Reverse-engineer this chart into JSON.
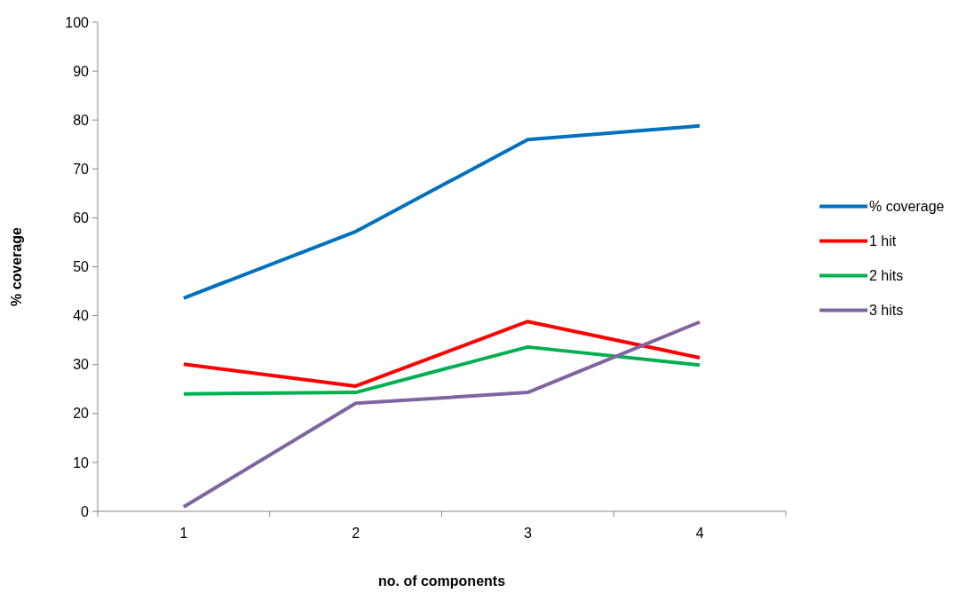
{
  "chart_data": {
    "type": "line",
    "xlabel": "no. of components",
    "ylabel": "% coverage",
    "categories": [
      "1",
      "2",
      "3",
      "4"
    ],
    "ylim": [
      0,
      100
    ],
    "yticks": [
      0,
      10,
      20,
      30,
      40,
      50,
      60,
      70,
      80,
      90,
      100
    ],
    "grid": false,
    "legend": "right",
    "marker": "none",
    "line_style": "solid",
    "series": [
      {
        "name": "% coverage",
        "color": "#0070c0",
        "values": [
          43.6,
          57.2,
          76.0,
          78.8
        ]
      },
      {
        "name": "1 hit",
        "color": "#ff0000",
        "values": [
          30.1,
          25.6,
          38.8,
          31.4
        ]
      },
      {
        "name": "2 hits",
        "color": "#00b050",
        "values": [
          24.0,
          24.3,
          33.6,
          29.9
        ]
      },
      {
        "name": "3 hits",
        "color": "#8064a2",
        "values": [
          0.9,
          22.1,
          24.3,
          38.7
        ]
      }
    ]
  }
}
